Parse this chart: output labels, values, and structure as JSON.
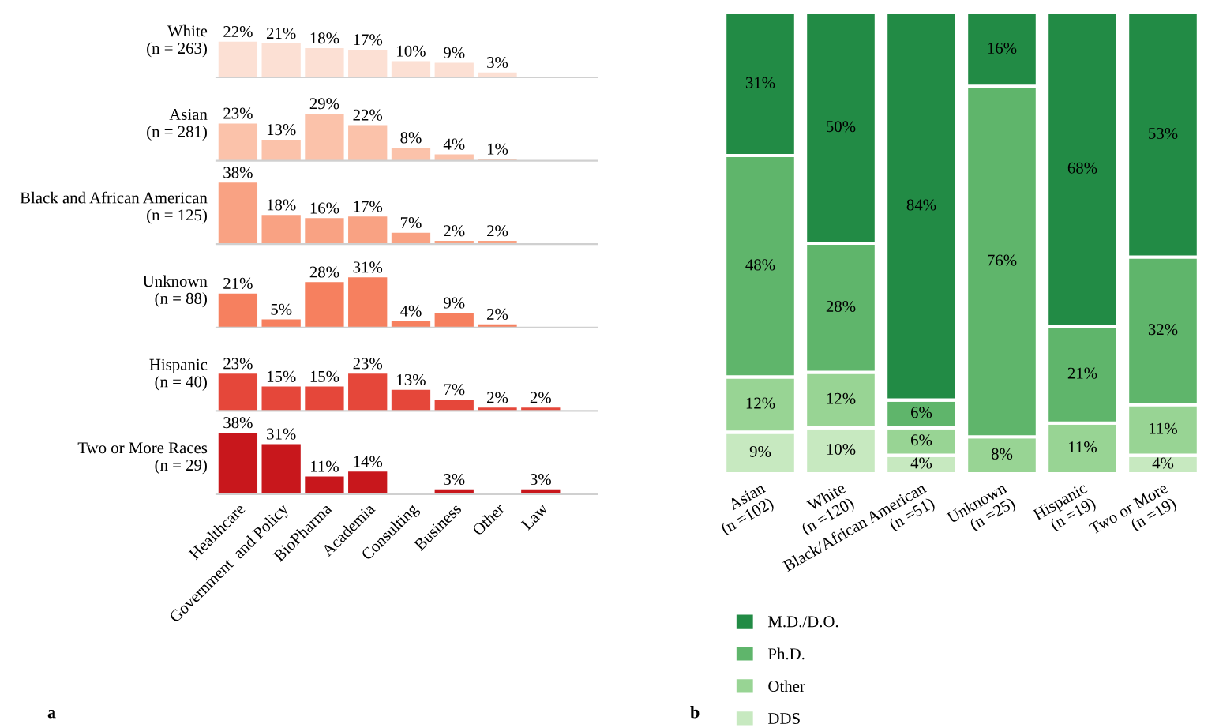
{
  "chart_data": [
    {
      "type": "bar",
      "ylabel": "White\n(n = 263)",
      "categories": [
        null,
        null,
        null,
        null,
        null,
        null,
        null
      ],
      "values": [
        22,
        21,
        18,
        17,
        10,
        9,
        3
      ],
      "value_labels": [
        "22%",
        "21%",
        "18%",
        "17%",
        "10%",
        "9%",
        "3%"
      ],
      "color": "#fce0d4",
      "tick_labels": false,
      "annotations": [
        "a"
      ]
    },
    {
      "type": "bar",
      "ylabel": "Asian\n(n = 281)",
      "categories": [
        null,
        null,
        null,
        null,
        null,
        null,
        null
      ],
      "values": [
        23,
        13,
        29,
        22,
        8,
        4,
        1
      ],
      "value_labels": [
        "23%",
        "13%",
        "29%",
        "22%",
        "8%",
        "4%",
        "1%"
      ],
      "color": "#fbc2aa",
      "tick_labels": false
    },
    {
      "type": "bar",
      "ylabel": "Black and African American\n(n = 125)",
      "categories": [
        null,
        null,
        null,
        null,
        null,
        null,
        null
      ],
      "values": [
        38,
        18,
        16,
        17,
        7,
        2,
        2
      ],
      "value_labels": [
        "38%",
        "18%",
        "16%",
        "17%",
        "7%",
        "2%",
        "2%"
      ],
      "color": "#f9a283",
      "tick_labels": false
    },
    {
      "type": "bar",
      "ylabel": "Unknown\n(n = 88)",
      "categories": [
        null,
        null,
        null,
        null,
        null,
        null,
        null
      ],
      "values": [
        21,
        5,
        28,
        31,
        4,
        9,
        2
      ],
      "value_labels": [
        "21%",
        "5%",
        "28%",
        "31%",
        "4%",
        "9%",
        "2%"
      ],
      "color": "#f6805f",
      "tick_labels": false
    },
    {
      "type": "bar",
      "ylabel": "Hispanic\n(n = 40)",
      "categories": [
        null,
        null,
        null,
        null,
        null,
        null,
        null,
        null
      ],
      "values": [
        23,
        15,
        15,
        23,
        13,
        7,
        2,
        2
      ],
      "value_labels": [
        "23%",
        "15%",
        "15%",
        "23%",
        "13%",
        "7%",
        "2%",
        "2%"
      ],
      "color": "#e5473a",
      "tick_labels": false
    },
    {
      "type": "bar",
      "ylabel": "Two or More Races\n(n = 29)",
      "categories": [
        "Healthcare",
        "Government  and Policy",
        "BioPharma",
        "Academia",
        "Consulting",
        "Business",
        "Other",
        "Law"
      ],
      "values": [
        38,
        31,
        11,
        14,
        null,
        3,
        null,
        3
      ],
      "value_labels": [
        "38%",
        "31%",
        "11%",
        "14%",
        null,
        "3%",
        null,
        "3%"
      ],
      "color": "#c8171c",
      "tick_labels": "x"
    },
    {
      "type": "bar",
      "stacked": true,
      "tick_labels": "x",
      "legend": "bottom left",
      "annotations": [
        "b"
      ],
      "categories": [
        "Asian\n(n =102)",
        "White\n(n =120)",
        "Black/African American\n(n =51)",
        "Unknown\n(n =25)",
        "Hispanic\n(n =19)",
        "Two or More\n(n =19)"
      ],
      "series": [
        {
          "name": "DDS",
          "color": "#c7e9c0",
          "values": [
            9,
            10,
            4,
            null,
            null,
            4
          ],
          "value_labels": [
            "9%",
            "10%",
            "4%",
            null,
            null,
            "4%"
          ]
        },
        {
          "name": "Other",
          "color": "#98d494",
          "values": [
            12,
            12,
            6,
            8,
            11,
            11
          ],
          "value_labels": [
            "12%",
            "12%",
            "6%",
            "8%",
            "11%",
            "11%"
          ]
        },
        {
          "name": "Ph.D.",
          "color": "#5fb56b",
          "values": [
            48,
            28,
            6,
            76,
            21,
            32
          ],
          "value_labels": [
            "48%",
            "28%",
            "6%",
            "76%",
            "21%",
            "32%"
          ]
        },
        {
          "name": "M.D./D.O.",
          "color": "#228b45",
          "values": [
            31,
            50,
            84,
            16,
            68,
            53
          ],
          "value_labels": [
            "31%",
            "50%",
            "84%",
            "16%",
            "68%",
            "53%"
          ]
        }
      ]
    }
  ]
}
